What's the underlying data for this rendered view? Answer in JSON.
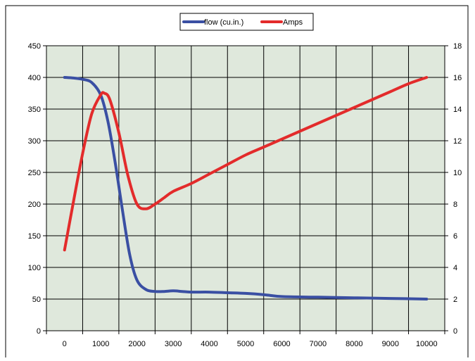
{
  "chart_data": {
    "type": "line",
    "x_ticks": [
      0,
      1000,
      2000,
      3000,
      4000,
      5000,
      6000,
      7000,
      8000,
      9000,
      10000
    ],
    "xlim": [
      -500,
      10500
    ],
    "y_left": {
      "min": 0,
      "max": 450,
      "step": 50,
      "ticks": [
        0,
        50,
        100,
        150,
        200,
        250,
        300,
        350,
        400,
        450
      ]
    },
    "y_right": {
      "min": 0,
      "max": 18,
      "step": 2,
      "ticks": [
        0,
        2,
        4,
        6,
        8,
        10,
        12,
        14,
        16,
        18
      ]
    },
    "grid": true,
    "legend": {
      "position": "top"
    },
    "plot_background": "#dfe8dc",
    "series": [
      {
        "name": "flow (cu.in.)",
        "axis": "left",
        "color": "#3a4fa3",
        "x": [
          0,
          250,
          500,
          750,
          1000,
          1200,
          1400,
          1600,
          1800,
          2000,
          2250,
          2500,
          2750,
          3000,
          3250,
          3500,
          4000,
          4500,
          5000,
          5500,
          6000,
          7000,
          8000,
          9000,
          10000
        ],
        "y": [
          400,
          399,
          397,
          392,
          372,
          330,
          265,
          190,
          120,
          80,
          65,
          62,
          62,
          63,
          62,
          61,
          61,
          60,
          59,
          57,
          54,
          53,
          52,
          51,
          50
        ]
      },
      {
        "name": "Amps",
        "axis": "right",
        "color": "#e32b2b",
        "x": [
          0,
          250,
          500,
          750,
          1000,
          1100,
          1250,
          1500,
          1750,
          2000,
          2250,
          2500,
          2750,
          3000,
          3500,
          4000,
          4500,
          5000,
          5500,
          6000,
          6500,
          7000,
          7500,
          8000,
          8500,
          9000,
          9500,
          10000
        ],
        "y": [
          5.1,
          8.2,
          11.2,
          13.7,
          14.9,
          15.0,
          14.6,
          12.5,
          9.8,
          8.0,
          7.7,
          8.0,
          8.4,
          8.8,
          9.3,
          9.9,
          10.5,
          11.1,
          11.6,
          12.1,
          12.6,
          13.1,
          13.6,
          14.1,
          14.6,
          15.1,
          15.6,
          16.0
        ]
      }
    ]
  }
}
